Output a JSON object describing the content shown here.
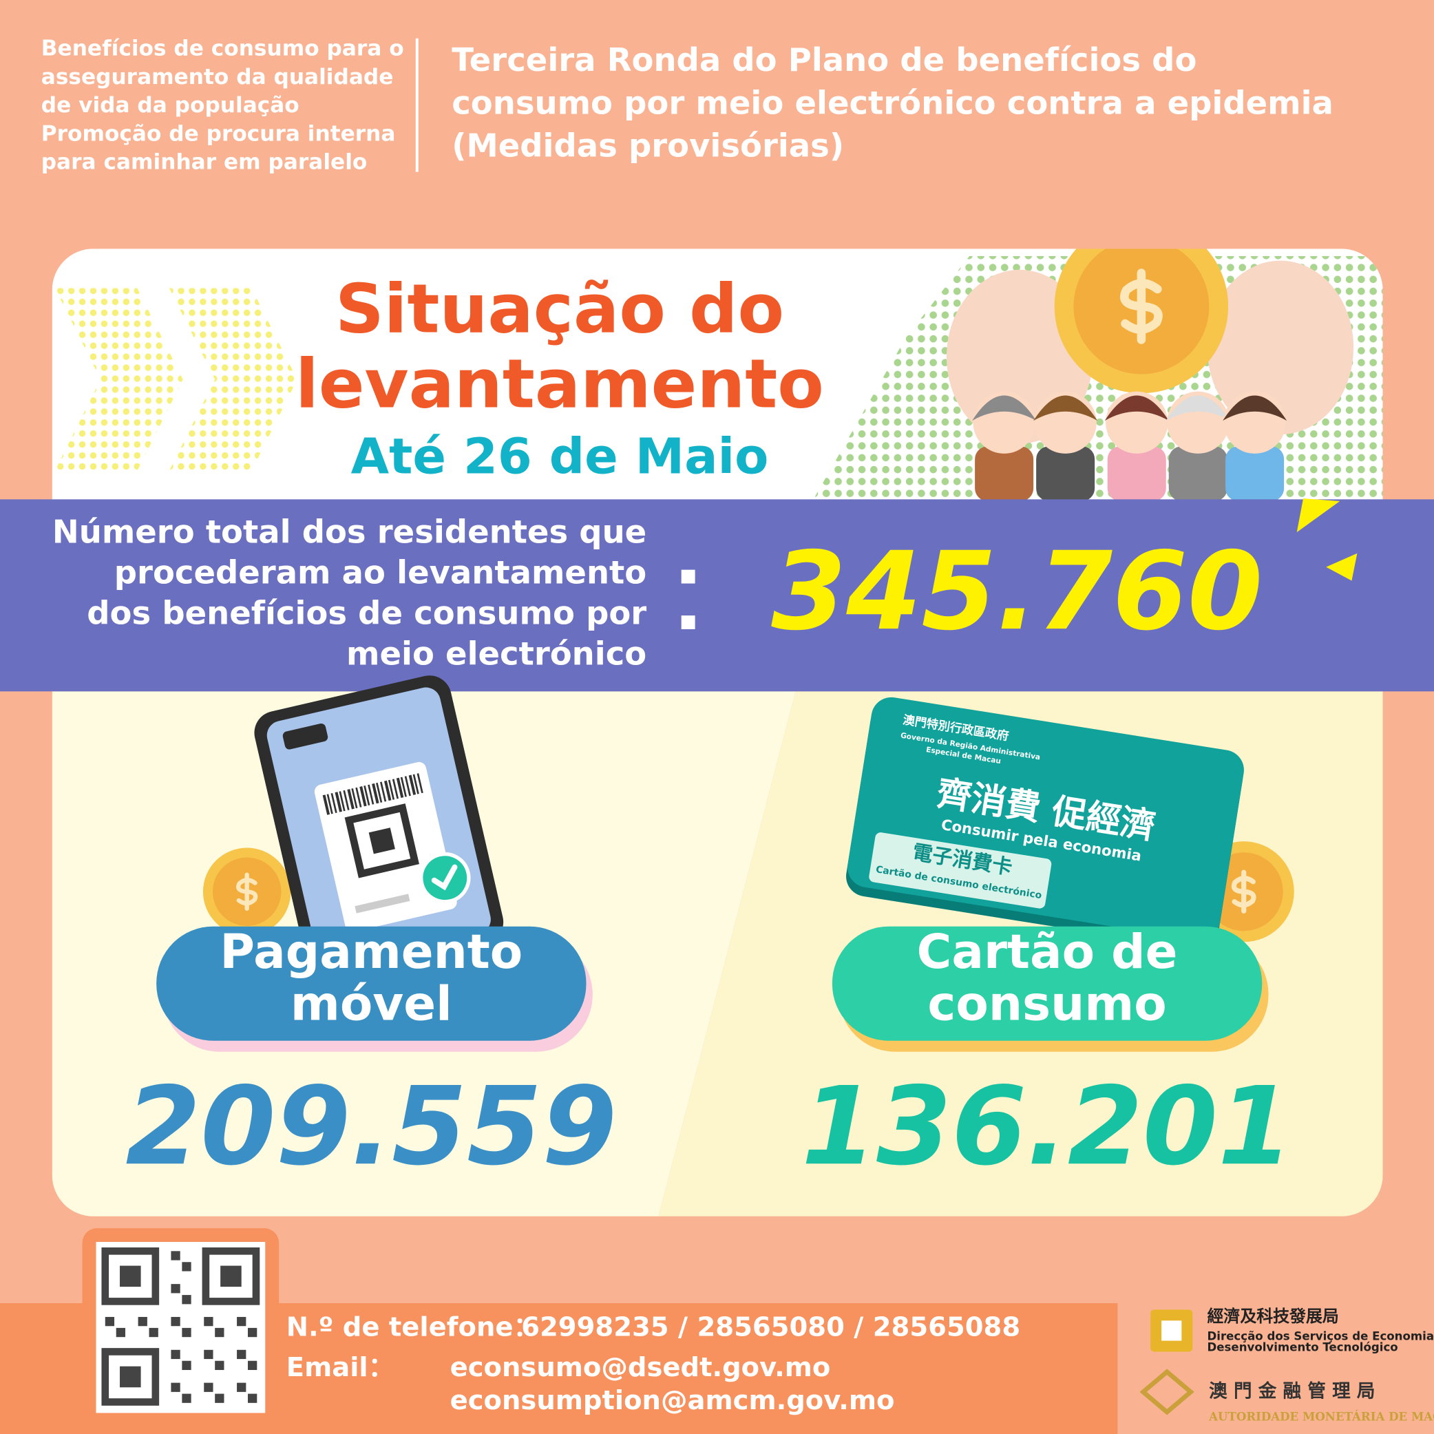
{
  "header": {
    "subtitle_lines": [
      "Benefícios de consumo para o",
      "asseguramento da qualidade",
      "de vida da população",
      "Promoção de procura interna",
      "para caminhar em paralelo"
    ],
    "title_lines": [
      "Terceira Ronda do Plano de benefícios do",
      "consumo por meio electrónico contra a epidemia",
      "(Medidas provisórias)"
    ]
  },
  "banner": {
    "title_lines": [
      "Situação do",
      "levantamento"
    ],
    "date": "Até 26 de Maio"
  },
  "total": {
    "label_lines": [
      "Número total dos residentes que",
      "procederam ao levantamento",
      "dos benefícios de consumo por",
      "meio electrónico"
    ],
    "value": "345.760"
  },
  "methods": [
    {
      "label_lines": [
        "Pagamento",
        "móvel"
      ],
      "value": "209.559"
    },
    {
      "label_lines": [
        "Cartão de",
        "consumo"
      ],
      "value": "136.201"
    }
  ],
  "card": {
    "issuer": "澳門特別行政區政府",
    "issuer_pt_lines": [
      "Governo da Região Administrativa",
      "Especial de Macau"
    ],
    "slogan": "齊消費 促經濟",
    "slogan_pt": "Consumir pela economia",
    "card_name": "電子消費卡",
    "card_name_pt": "Cartão de consumo electrónico"
  },
  "contact": {
    "phone_label": "N.º de telefone：",
    "phone": "62998235 / 28565080 / 28565088",
    "email_label": "Email：",
    "emails": [
      "econsumo@dsedt.gov.mo",
      "econsumption@amcm.gov.mo"
    ]
  },
  "logos": {
    "dsedt_lines": [
      "經濟及科技發展局",
      "Direcção dos Serviços de Economia e",
      "Desenvolvimento Tecnológico"
    ],
    "amcm_lines": [
      "澳 門 金 融 管 理 局",
      "AUTORIDADE MONETÁRIA DE MACAU"
    ]
  }
}
